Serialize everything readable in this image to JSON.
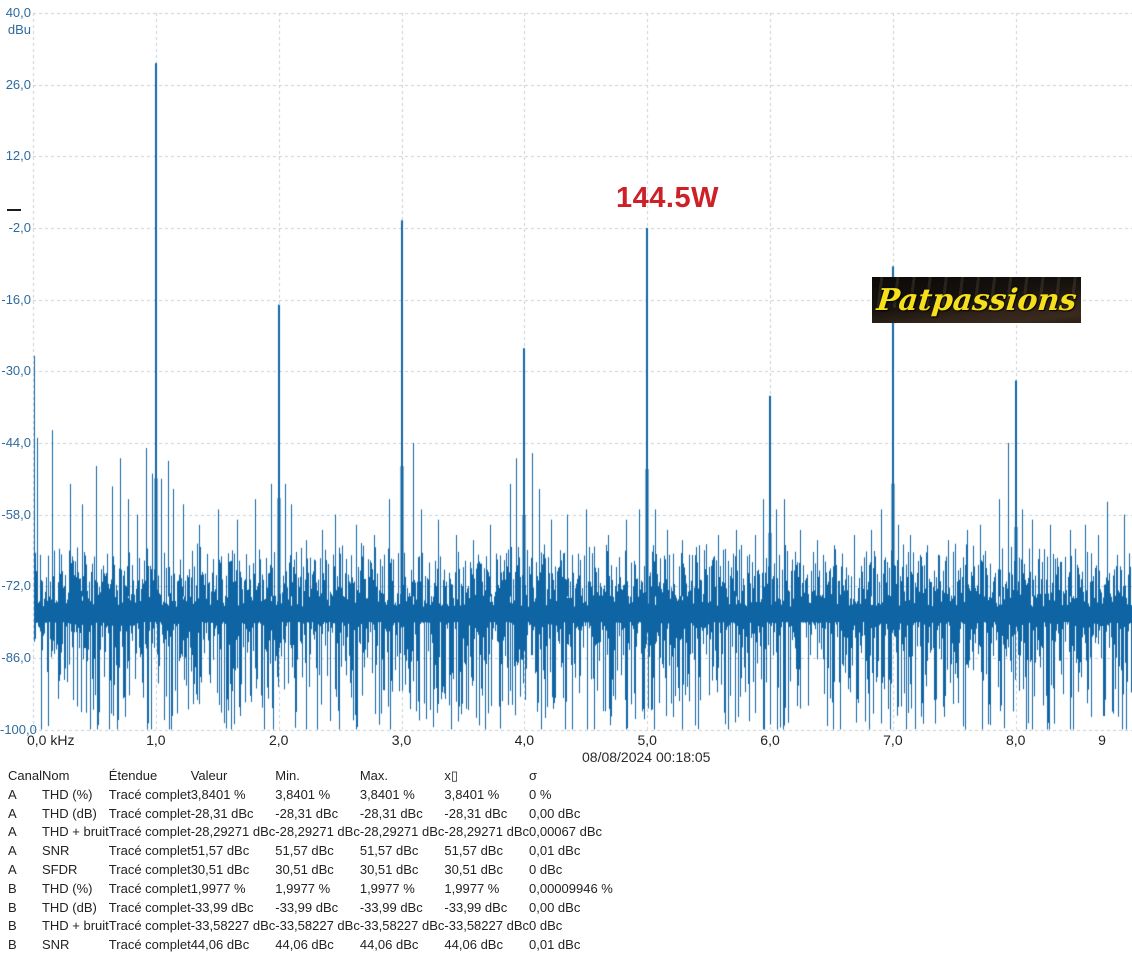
{
  "chart": {
    "unit_label": "dBu",
    "y_ticks": [
      {
        "label": "40,0",
        "value": 40
      },
      {
        "label": "26,0",
        "value": 26
      },
      {
        "label": "12,0",
        "value": 12
      },
      {
        "label": "-2,0",
        "value": -2
      },
      {
        "label": "-16,0",
        "value": -16
      },
      {
        "label": "-30,0",
        "value": -30
      },
      {
        "label": "-44,0",
        "value": -44
      },
      {
        "label": "-58,0",
        "value": -58
      },
      {
        "label": "-72,0",
        "value": -72
      },
      {
        "label": "-86,0",
        "value": -86
      },
      {
        "label": "-100,0",
        "value": -100
      }
    ],
    "x_ticks": [
      {
        "label": "0,0 kHz",
        "khz": 0,
        "align": "left"
      },
      {
        "label": "1,0",
        "khz": 1
      },
      {
        "label": "2,0",
        "khz": 2
      },
      {
        "label": "3,0",
        "khz": 3
      },
      {
        "label": "4,0",
        "khz": 4
      },
      {
        "label": "5,0",
        "khz": 5
      },
      {
        "label": "6,0",
        "khz": 6
      },
      {
        "label": "7,0",
        "khz": 7
      },
      {
        "label": "8,0",
        "khz": 8
      },
      {
        "label": "9",
        "khz": 9,
        "clip_right": true
      }
    ],
    "timestamp": "08/08/2024 00:18:05",
    "power_annotation": "144.5W",
    "watermark_text": "Patpassions",
    "colors": {
      "trace": "#0f65a4",
      "grid": "#c6cfd7",
      "axis_label_blue": "#2e6b9e",
      "annotation_red": "#cd2027",
      "watermark_yellow": "#f6e01b"
    }
  },
  "chart_data": {
    "type": "line",
    "subtype": "fft-spectrum",
    "x_unit": "kHz",
    "y_unit": "dBu",
    "x_range_khz": [
      0,
      8.95
    ],
    "y_range_dbu": [
      -100,
      40
    ],
    "grid": true,
    "harmonics_dbu": [
      [
        1.0,
        30.2
      ],
      [
        2.0,
        -17.0
      ],
      [
        3.0,
        -0.5
      ],
      [
        4.0,
        -25.5
      ],
      [
        5.0,
        -2.0
      ],
      [
        6.0,
        -34.8
      ],
      [
        7.0,
        -9.5
      ],
      [
        8.0,
        -31.8
      ]
    ],
    "minor_peaks_dbu": [
      [
        0.01,
        -27
      ],
      [
        0.032,
        -43
      ],
      [
        0.155,
        -41.5
      ],
      [
        0.3,
        -52
      ],
      [
        0.4,
        -56
      ],
      [
        0.513,
        -48.5
      ],
      [
        0.64,
        -52.5
      ],
      [
        0.71,
        -47
      ],
      [
        0.77,
        -55
      ],
      [
        0.845,
        -58
      ],
      [
        0.92,
        -45
      ],
      [
        0.965,
        -50
      ],
      [
        1.045,
        -51
      ],
      [
        1.1,
        -47.5
      ],
      [
        1.14,
        -53
      ],
      [
        1.22,
        -56
      ],
      [
        1.35,
        -60
      ],
      [
        1.51,
        -57
      ],
      [
        1.66,
        -59
      ],
      [
        1.81,
        -55
      ],
      [
        1.935,
        -52
      ],
      [
        2.055,
        -52
      ],
      [
        2.1,
        -56
      ],
      [
        2.22,
        -63
      ],
      [
        2.35,
        -61
      ],
      [
        2.46,
        -58
      ],
      [
        2.63,
        -60
      ],
      [
        2.78,
        -62
      ],
      [
        2.9,
        -55
      ],
      [
        3.095,
        -44
      ],
      [
        3.16,
        -57
      ],
      [
        3.3,
        -59
      ],
      [
        3.44,
        -62
      ],
      [
        3.58,
        -63
      ],
      [
        3.72,
        -60
      ],
      [
        3.88,
        -52
      ],
      [
        3.935,
        -47
      ],
      [
        4.065,
        -46
      ],
      [
        4.12,
        -53
      ],
      [
        4.22,
        -59
      ],
      [
        4.35,
        -58
      ],
      [
        4.5,
        -57
      ],
      [
        4.68,
        -62
      ],
      [
        4.83,
        -59
      ],
      [
        4.93,
        -57
      ],
      [
        5.06,
        -57
      ],
      [
        5.16,
        -61
      ],
      [
        5.28,
        -63
      ],
      [
        5.42,
        -64
      ],
      [
        5.58,
        -62
      ],
      [
        5.72,
        -61
      ],
      [
        5.88,
        -62
      ],
      [
        5.945,
        -55
      ],
      [
        6.05,
        -57
      ],
      [
        6.11,
        -55
      ],
      [
        6.24,
        -61
      ],
      [
        6.38,
        -63
      ],
      [
        6.52,
        -64
      ],
      [
        6.68,
        -62
      ],
      [
        6.82,
        -61
      ],
      [
        6.9,
        -57
      ],
      [
        7.045,
        -60
      ],
      [
        7.14,
        -62
      ],
      [
        7.28,
        -64
      ],
      [
        7.45,
        -63
      ],
      [
        7.6,
        -61
      ],
      [
        7.71,
        -60
      ],
      [
        7.865,
        -55
      ],
      [
        7.935,
        -44
      ],
      [
        8.055,
        -57
      ],
      [
        8.13,
        -59
      ],
      [
        8.28,
        -60
      ],
      [
        8.44,
        -61
      ],
      [
        8.56,
        -60
      ],
      [
        8.67,
        -62
      ],
      [
        8.74,
        -55.5
      ],
      [
        8.88,
        -58
      ]
    ],
    "noise_floor": {
      "seed": 987654,
      "top_range_dbu": [
        -63.5,
        -76
      ],
      "bottom_range_dbu": [
        -79,
        -100
      ]
    }
  },
  "table": {
    "headers": [
      "Canal",
      "Nom",
      "Étendue",
      "Valeur",
      "Min.",
      "Max.",
      "x▯",
      "σ"
    ],
    "rows": [
      [
        "A",
        "THD (%)",
        "Tracé complet",
        "3,8401 %",
        "3,8401 %",
        "3,8401 %",
        "3,8401 %",
        "0 %"
      ],
      [
        "A",
        "THD (dB)",
        "Tracé complet",
        "-28,31 dBc",
        "-28,31 dBc",
        "-28,31 dBc",
        "-28,31 dBc",
        "0,00 dBc"
      ],
      [
        "A",
        "THD + bruit",
        "Tracé complet",
        "-28,29271 dBc",
        "-28,29271 dBc",
        "-28,29271 dBc",
        "-28,29271 dBc",
        "0,00067 dBc"
      ],
      [
        "A",
        "SNR",
        "Tracé complet",
        "51,57 dBc",
        "51,57 dBc",
        "51,57 dBc",
        "51,57 dBc",
        "0,01 dBc"
      ],
      [
        "A",
        "SFDR",
        "Tracé complet",
        "30,51 dBc",
        "30,51 dBc",
        "30,51 dBc",
        "30,51 dBc",
        "0 dBc"
      ],
      [
        "B",
        "THD (%)",
        "Tracé complet",
        "1,9977 %",
        "1,9977 %",
        "1,9977 %",
        "1,9977 %",
        "0,00009946 %"
      ],
      [
        "B",
        "THD (dB)",
        "Tracé complet",
        "-33,99 dBc",
        "-33,99 dBc",
        "-33,99 dBc",
        "-33,99 dBc",
        "0,00 dBc"
      ],
      [
        "B",
        "THD + bruit",
        "Tracé complet",
        "-33,58227 dBc",
        "-33,58227 dBc",
        "-33,58227 dBc",
        "-33,58227 dBc",
        "0 dBc"
      ],
      [
        "B",
        "SNR",
        "Tracé complet",
        "44,06 dBc",
        "44,06 dBc",
        "44,06 dBc",
        "44,06 dBc",
        "0,01 dBc"
      ]
    ]
  }
}
